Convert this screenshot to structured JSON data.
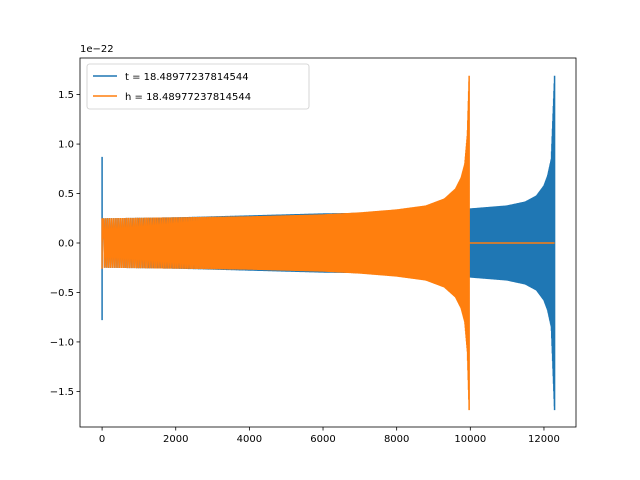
{
  "chart_data": {
    "type": "line",
    "title": "",
    "xlabel": "",
    "ylabel": "",
    "offset_text": "1e−22",
    "xlim": [
      -600,
      12870
    ],
    "ylim": [
      -1.86,
      1.87
    ],
    "xticks": [
      0,
      2000,
      4000,
      6000,
      8000,
      10000,
      12000
    ],
    "xtick_labels": [
      "0",
      "2000",
      "4000",
      "6000",
      "8000",
      "10000",
      "12000"
    ],
    "yticks": [
      -1.5,
      -1.0,
      -0.5,
      0.0,
      0.5,
      1.0,
      1.5
    ],
    "ytick_labels": [
      "−1.5",
      "−1.0",
      "−0.5",
      "0.0",
      "0.5",
      "1.0",
      "1.5"
    ],
    "grid": false,
    "legend_position": "upper-left",
    "series": [
      {
        "name": "t = 18.48977237814544",
        "color": "#1f77b4",
        "x_start": 0,
        "x_end": 12288,
        "initial_spike": {
          "x": 0,
          "ymin": -0.78,
          "ymax": 0.87
        },
        "amplitude_envelope": {
          "x": [
            0,
            2000,
            4000,
            6000,
            8000,
            9000,
            10000,
            11000,
            11500,
            11800,
            12000,
            12100,
            12200,
            12288
          ],
          "amp": [
            0.25,
            0.26,
            0.28,
            0.3,
            0.31,
            0.33,
            0.35,
            0.38,
            0.42,
            0.48,
            0.58,
            0.68,
            0.85,
            1.69
          ]
        },
        "final_value": 0.0
      },
      {
        "name": "h = 18.48977237814544",
        "color": "#ff7f0e",
        "x_start": 0,
        "x_end": 12288,
        "initial_spike": {
          "x": 0,
          "ymin": -0.26,
          "ymax": 0.25
        },
        "amplitude_envelope": {
          "x": [
            0,
            2000,
            4000,
            6000,
            7000,
            8000,
            8800,
            9300,
            9600,
            9750,
            9850,
            9920,
            9968
          ],
          "amp": [
            0.25,
            0.26,
            0.27,
            0.29,
            0.31,
            0.34,
            0.38,
            0.45,
            0.55,
            0.66,
            0.8,
            1.1,
            1.69
          ]
        },
        "zero_after": 9968,
        "final_value": 0.0
      }
    ]
  }
}
